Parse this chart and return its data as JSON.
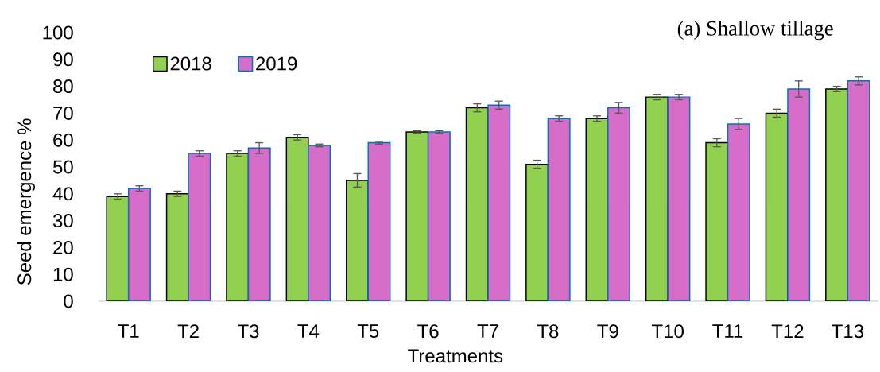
{
  "chart_data": {
    "type": "bar",
    "title": "(a) Shallow tillage",
    "xlabel": "Treatments",
    "ylabel": "Seed emergence %",
    "categories": [
      "T1",
      "T2",
      "T3",
      "T4",
      "T5",
      "T6",
      "T7",
      "T8",
      "T9",
      "T10",
      "T11",
      "T12",
      "T13"
    ],
    "series": [
      {
        "name": "2018",
        "color": "#92d050",
        "values": [
          39,
          40,
          55,
          61,
          45,
          63,
          72,
          51,
          68,
          76,
          59,
          70,
          79
        ],
        "errors": [
          1,
          1,
          1,
          1,
          2.5,
          0.5,
          1.5,
          1.5,
          1,
          1,
          1.5,
          1.5,
          1
        ]
      },
      {
        "name": "2019",
        "color": "#d66dc8",
        "values": [
          42,
          55,
          57,
          58,
          59,
          63,
          73,
          68,
          72,
          76,
          66,
          79,
          82
        ],
        "errors": [
          1,
          1,
          2,
          0.5,
          0.5,
          0.5,
          1.5,
          1,
          2,
          1,
          2,
          3,
          1.5
        ]
      }
    ],
    "ylim": [
      0,
      100
    ],
    "yticks": [
      0,
      10,
      20,
      30,
      40,
      50,
      60,
      70,
      80,
      90,
      100
    ],
    "legend": "top left"
  }
}
